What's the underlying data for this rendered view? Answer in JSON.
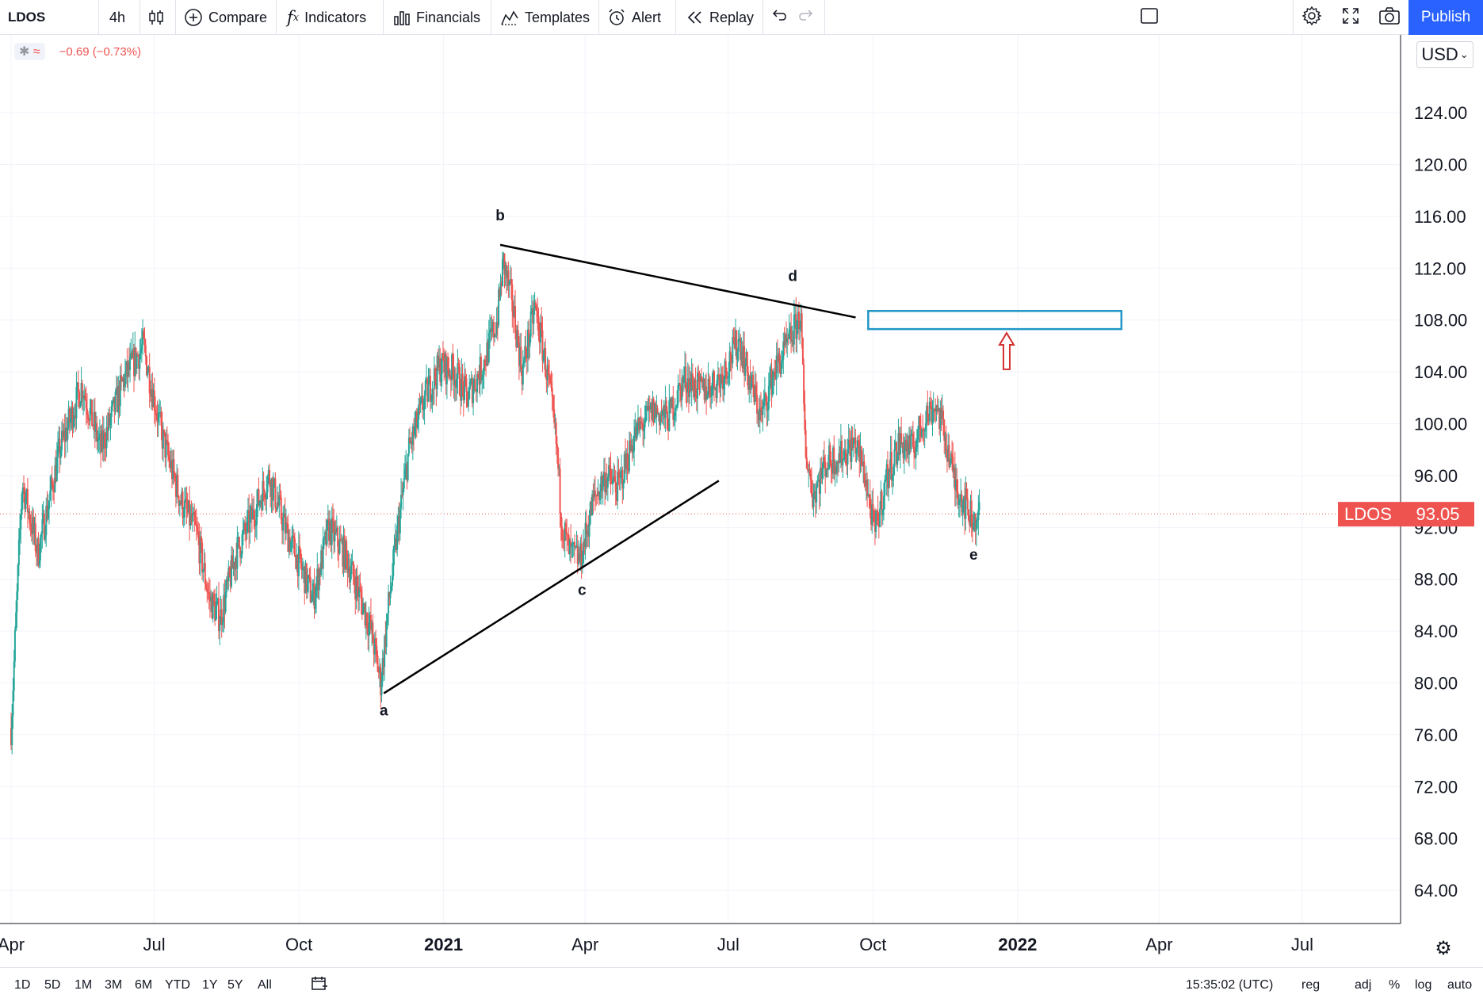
{
  "toolbar": {
    "symbol": "LDOS",
    "interval": "4h",
    "compare": "Compare",
    "indicators": "Indicators",
    "financials": "Financials",
    "templates": "Templates",
    "alert": "Alert",
    "replay": "Replay",
    "publish": "Publish"
  },
  "legend": {
    "change": "−0.69 (−0.73%)"
  },
  "currency": "USD",
  "price_badge": {
    "symbol": "LDOS",
    "price": "93.05"
  },
  "bottombar": {
    "ranges": [
      "1D",
      "5D",
      "1M",
      "3M",
      "6M",
      "YTD",
      "1Y",
      "5Y",
      "All"
    ],
    "time": "15:35:02 (UTC)",
    "session": "reg",
    "adj": "adj",
    "percent": "%",
    "log": "log",
    "auto": "auto"
  },
  "colors": {
    "up": "#26a69a",
    "down": "#ef5350",
    "trendline": "#000000",
    "target_box": "#2196c8",
    "arrow": "#d32f2f",
    "publish": "#2962ff"
  },
  "chart_data": {
    "type": "candlestick",
    "symbol": "LDOS",
    "last_price": 93.05,
    "ylim": [
      61.5,
      130
    ],
    "y_ticks": [
      64,
      68,
      72,
      76,
      80,
      84,
      88,
      92,
      96,
      100,
      104,
      108,
      112,
      116,
      120,
      124
    ],
    "xlim": [
      "2020-04-01",
      "2022-09-01"
    ],
    "x_ticks": [
      {
        "label": "Apr",
        "date": "2020-04-01",
        "bold": false
      },
      {
        "label": "Jul",
        "date": "2020-07-01",
        "bold": false
      },
      {
        "label": "Oct",
        "date": "2020-10-01",
        "bold": false
      },
      {
        "label": "2021",
        "date": "2021-01-01",
        "bold": true
      },
      {
        "label": "Apr",
        "date": "2021-04-01",
        "bold": false
      },
      {
        "label": "Jul",
        "date": "2021-07-01",
        "bold": false
      },
      {
        "label": "Oct",
        "date": "2021-10-01",
        "bold": false
      },
      {
        "label": "2022",
        "date": "2022-01-01",
        "bold": true
      },
      {
        "label": "Apr",
        "date": "2022-04-01",
        "bold": false
      },
      {
        "label": "Jul",
        "date": "2022-07-01",
        "bold": false
      }
    ],
    "price_path": [
      {
        "date": "2020-04-01",
        "price": 76.5
      },
      {
        "date": "2020-04-08",
        "price": 95.5
      },
      {
        "date": "2020-04-18",
        "price": 90.0
      },
      {
        "date": "2020-05-02",
        "price": 98.0
      },
      {
        "date": "2020-05-16",
        "price": 103.0
      },
      {
        "date": "2020-05-28",
        "price": 98.0
      },
      {
        "date": "2020-06-12",
        "price": 103.5
      },
      {
        "date": "2020-06-24",
        "price": 106.0
      },
      {
        "date": "2020-07-06",
        "price": 99.0
      },
      {
        "date": "2020-07-18",
        "price": 94.0
      },
      {
        "date": "2020-07-28",
        "price": 91.5
      },
      {
        "date": "2020-08-05",
        "price": 86.5
      },
      {
        "date": "2020-08-12",
        "price": 85.0
      },
      {
        "date": "2020-08-22",
        "price": 90.0
      },
      {
        "date": "2020-09-02",
        "price": 93.0
      },
      {
        "date": "2020-09-12",
        "price": 96.0
      },
      {
        "date": "2020-09-22",
        "price": 92.0
      },
      {
        "date": "2020-10-02",
        "price": 89.0
      },
      {
        "date": "2020-10-10",
        "price": 86.5
      },
      {
        "date": "2020-10-20",
        "price": 92.0
      },
      {
        "date": "2020-10-30",
        "price": 90.0
      },
      {
        "date": "2020-11-08",
        "price": 87.0
      },
      {
        "date": "2020-11-16",
        "price": 84.0
      },
      {
        "date": "2020-11-22",
        "price": 80.0
      },
      {
        "date": "2020-11-27",
        "price": 86.0
      },
      {
        "date": "2020-12-03",
        "price": 92.0
      },
      {
        "date": "2020-12-10",
        "price": 98.0
      },
      {
        "date": "2020-12-20",
        "price": 102.0
      },
      {
        "date": "2020-12-30",
        "price": 104.5
      },
      {
        "date": "2021-01-08",
        "price": 104.0
      },
      {
        "date": "2021-01-16",
        "price": 102.0
      },
      {
        "date": "2021-01-26",
        "price": 104.5
      },
      {
        "date": "2021-02-04",
        "price": 108.0
      },
      {
        "date": "2021-02-08",
        "price": 112.5
      },
      {
        "date": "2021-02-14",
        "price": 109.0
      },
      {
        "date": "2021-02-20",
        "price": 104.0
      },
      {
        "date": "2021-02-28",
        "price": 109.0
      },
      {
        "date": "2021-03-04",
        "price": 106.5
      },
      {
        "date": "2021-03-09",
        "price": 103.0
      },
      {
        "date": "2021-03-14",
        "price": 98.0
      },
      {
        "date": "2021-03-17",
        "price": 92.5
      },
      {
        "date": "2021-03-22",
        "price": 90.0
      },
      {
        "date": "2021-03-29",
        "price": 89.5
      },
      {
        "date": "2021-04-06",
        "price": 94.0
      },
      {
        "date": "2021-04-14",
        "price": 96.0
      },
      {
        "date": "2021-04-22",
        "price": 95.0
      },
      {
        "date": "2021-05-02",
        "price": 99.0
      },
      {
        "date": "2021-05-14",
        "price": 101.0
      },
      {
        "date": "2021-05-24",
        "price": 100.5
      },
      {
        "date": "2021-06-03",
        "price": 103.5
      },
      {
        "date": "2021-06-14",
        "price": 102.5
      },
      {
        "date": "2021-06-26",
        "price": 103.5
      },
      {
        "date": "2021-07-08",
        "price": 106.5
      },
      {
        "date": "2021-07-14",
        "price": 103.5
      },
      {
        "date": "2021-07-22",
        "price": 100.5
      },
      {
        "date": "2021-07-30",
        "price": 104.0
      },
      {
        "date": "2021-08-08",
        "price": 106.0
      },
      {
        "date": "2021-08-16",
        "price": 108.5
      },
      {
        "date": "2021-08-19",
        "price": 98.0
      },
      {
        "date": "2021-08-24",
        "price": 94.5
      },
      {
        "date": "2021-09-01",
        "price": 97.0
      },
      {
        "date": "2021-09-10",
        "price": 97.5
      },
      {
        "date": "2021-09-20",
        "price": 98.5
      },
      {
        "date": "2021-09-26",
        "price": 96.0
      },
      {
        "date": "2021-10-02",
        "price": 91.5
      },
      {
        "date": "2021-10-10",
        "price": 96.0
      },
      {
        "date": "2021-10-18",
        "price": 98.5
      },
      {
        "date": "2021-10-26",
        "price": 98.0
      },
      {
        "date": "2021-11-03",
        "price": 100.5
      },
      {
        "date": "2021-11-10",
        "price": 101.5
      },
      {
        "date": "2021-11-16",
        "price": 99.0
      },
      {
        "date": "2021-11-22",
        "price": 95.5
      },
      {
        "date": "2021-11-28",
        "price": 94.0
      },
      {
        "date": "2021-12-04",
        "price": 92.5
      },
      {
        "date": "2021-12-08",
        "price": 93.05
      }
    ],
    "trendlines": [
      {
        "name": "upper",
        "from": {
          "date": "2021-02-06",
          "price": 113.8
        },
        "to": {
          "date": "2021-09-20",
          "price": 108.2
        }
      },
      {
        "name": "lower",
        "from": {
          "date": "2020-11-24",
          "price": 79.2
        },
        "to": {
          "date": "2021-06-25",
          "price": 95.6
        }
      }
    ],
    "wave_labels": [
      {
        "label": "a",
        "date": "2020-11-24",
        "price": 77.5
      },
      {
        "label": "b",
        "date": "2021-02-06",
        "price": 115.7
      },
      {
        "label": "c",
        "date": "2021-03-30",
        "price": 86.8
      },
      {
        "label": "d",
        "date": "2021-08-11",
        "price": 111.0
      },
      {
        "label": "e",
        "date": "2021-12-04",
        "price": 89.5
      }
    ],
    "target_zone": {
      "from": "2021-09-28",
      "to": "2022-03-08",
      "top": 108.7,
      "bottom": 107.3
    },
    "arrow": {
      "date": "2021-12-25",
      "from_price": 104.2,
      "to_price": 107.0,
      "direction": "up"
    }
  }
}
